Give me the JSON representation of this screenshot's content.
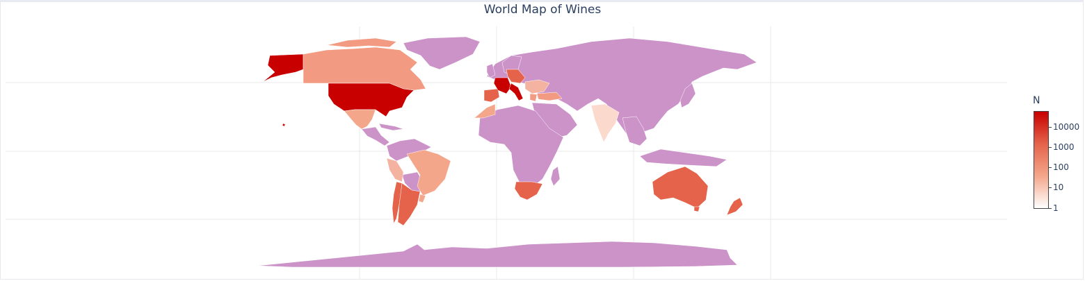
{
  "title": "World Map of Wines",
  "colors": {
    "no_data": "#cc93c9",
    "scale": [
      "#ffffff",
      "#f4a68a",
      "#e4634a",
      "#c80000"
    ]
  },
  "chart_data": {
    "type": "choropleth",
    "title": "World Map of Wines",
    "colorbar": {
      "title": "N",
      "scale": "log",
      "ticks": [
        "10000",
        "1000",
        "100",
        "10",
        "1"
      ]
    },
    "regions": [
      {
        "name": "US",
        "level": "highest"
      },
      {
        "name": "France",
        "level": "very high"
      },
      {
        "name": "Italy",
        "level": "very high"
      },
      {
        "name": "Spain",
        "level": "high"
      },
      {
        "name": "Portugal",
        "level": "high"
      },
      {
        "name": "Austria",
        "level": "high"
      },
      {
        "name": "Germany",
        "level": "high"
      },
      {
        "name": "Argentina",
        "level": "high"
      },
      {
        "name": "Chile",
        "level": "high"
      },
      {
        "name": "Australia",
        "level": "high"
      },
      {
        "name": "South Africa",
        "level": "high"
      },
      {
        "name": "New Zealand",
        "level": "high"
      },
      {
        "name": "Canada",
        "level": "medium"
      },
      {
        "name": "Mexico",
        "level": "medium"
      },
      {
        "name": "Brazil",
        "level": "medium"
      },
      {
        "name": "Uruguay",
        "level": "medium"
      },
      {
        "name": "Peru",
        "level": "medium"
      },
      {
        "name": "Greece",
        "level": "medium"
      },
      {
        "name": "Turkey",
        "level": "medium"
      },
      {
        "name": "Romania",
        "level": "medium"
      },
      {
        "name": "Bulgaria",
        "level": "medium"
      },
      {
        "name": "Morocco",
        "level": "medium"
      },
      {
        "name": "India",
        "level": "low"
      }
    ]
  }
}
